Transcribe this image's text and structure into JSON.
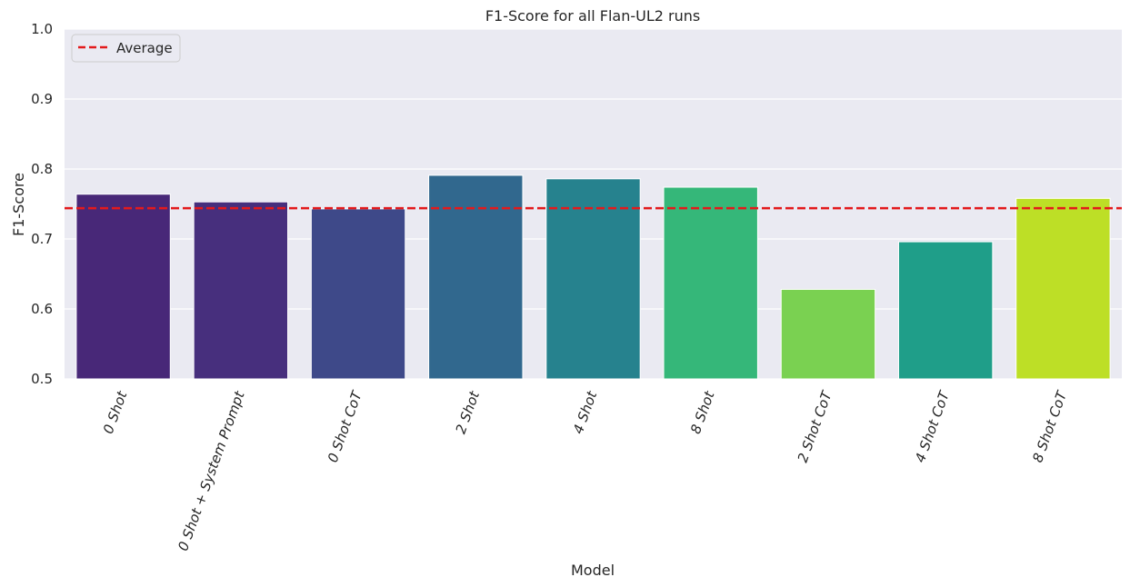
{
  "chart_data": {
    "type": "bar",
    "title": "F1-Score for all Flan-UL2 runs",
    "xlabel": "Model",
    "ylabel": "F1-Score",
    "ylim": [
      0.5,
      1.0
    ],
    "yticks": [
      "0.5",
      "0.6",
      "0.7",
      "0.8",
      "0.9",
      "1.0"
    ],
    "categories": [
      "0 Shot",
      "0 Shot + System Prompt",
      "0 Shot CoT",
      "2 Shot",
      "4 Shot",
      "8 Shot",
      "2 Shot CoT",
      "4 Shot CoT",
      "8 Shot CoT"
    ],
    "values": [
      0.764,
      0.753,
      0.743,
      0.791,
      0.786,
      0.774,
      0.628,
      0.696,
      0.758
    ],
    "bar_colors": [
      "#482878",
      "#472f7d",
      "#3e4989",
      "#31688e",
      "#26828e",
      "#35b779",
      "#7ad151",
      "#1f9e89",
      "#bddf26"
    ],
    "average": {
      "label": "Average",
      "value": 0.744,
      "color": "#e31a1c",
      "style": "dashed"
    },
    "grid": true,
    "background": "#eaeaf2",
    "legend_position": "top-left"
  }
}
